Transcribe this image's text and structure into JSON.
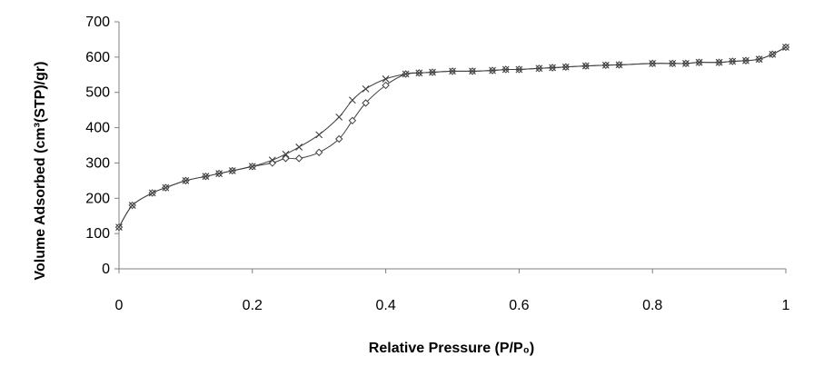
{
  "chart_data": {
    "type": "line",
    "title": "",
    "xlabel": "Relative Pressure (P/P₀)",
    "ylabel": "Volume Adsorbed (cm³(STP)/gr)",
    "xlim": [
      0,
      1
    ],
    "ylim": [
      0,
      700
    ],
    "x_ticks": [
      "0",
      "0.2",
      "0.4",
      "0.6",
      "0.8",
      "1"
    ],
    "y_ticks": [
      "0",
      "100",
      "200",
      "300",
      "400",
      "500",
      "600",
      "700"
    ],
    "grid": false,
    "legend": "none",
    "series": [
      {
        "marker": "diamond",
        "color": "#404040",
        "x": [
          0.0,
          0.02,
          0.05,
          0.07,
          0.1,
          0.13,
          0.15,
          0.17,
          0.2,
          0.23,
          0.25,
          0.27,
          0.3,
          0.33,
          0.35,
          0.37,
          0.4,
          0.43,
          0.45,
          0.47,
          0.5,
          0.53,
          0.56,
          0.58,
          0.6,
          0.63,
          0.65,
          0.67,
          0.7,
          0.73,
          0.75,
          0.8,
          0.83,
          0.85,
          0.87,
          0.9,
          0.92,
          0.94,
          0.96,
          0.98,
          1.0
        ],
        "y": [
          118,
          180,
          215,
          230,
          250,
          262,
          270,
          278,
          290,
          300,
          313,
          313,
          330,
          368,
          420,
          470,
          520,
          552,
          555,
          557,
          560,
          560,
          562,
          565,
          565,
          568,
          570,
          572,
          575,
          577,
          578,
          582,
          582,
          582,
          585,
          585,
          588,
          590,
          594,
          608,
          628
        ]
      },
      {
        "marker": "x",
        "color": "#404040",
        "x": [
          0.0,
          0.02,
          0.05,
          0.07,
          0.1,
          0.13,
          0.15,
          0.17,
          0.2,
          0.23,
          0.25,
          0.27,
          0.3,
          0.33,
          0.35,
          0.37,
          0.4,
          0.43,
          0.45,
          0.47,
          0.5,
          0.53,
          0.56,
          0.58,
          0.6,
          0.63,
          0.65,
          0.67,
          0.7,
          0.73,
          0.75,
          0.8,
          0.83,
          0.85,
          0.87,
          0.9,
          0.92,
          0.94,
          0.96,
          0.98,
          1.0
        ],
        "y": [
          118,
          180,
          215,
          230,
          250,
          262,
          270,
          278,
          290,
          308,
          325,
          345,
          380,
          430,
          478,
          510,
          538,
          552,
          555,
          557,
          560,
          560,
          562,
          565,
          565,
          568,
          570,
          572,
          575,
          577,
          578,
          582,
          582,
          582,
          585,
          585,
          588,
          590,
          594,
          608,
          628
        ]
      }
    ]
  }
}
